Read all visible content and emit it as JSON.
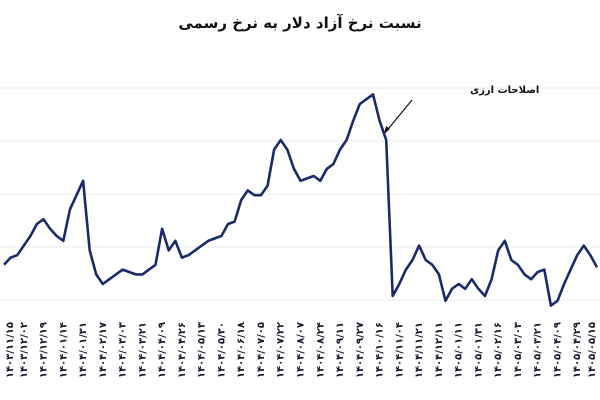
{
  "chart_data": {
    "type": "line",
    "title": "نسبت نرخ آزاد دلار به نرخ رسمی",
    "annotation": "اصلاحات ارزی",
    "categories": [
      "۱۴۰۳/۱۱/۱۵",
      null,
      null,
      "۱۴۰۳/۱۲/۰۲",
      null,
      null,
      "۱۴۰۳/۱۲/۱۹",
      null,
      null,
      "۱۴۰۴/۰۱/۱۴",
      null,
      null,
      "۱۴۰۴/۰۱/۳۱",
      null,
      null,
      "۱۴۰۴/۰۲/۱۷",
      null,
      null,
      "۱۴۰۴/۰۳/۰۳",
      null,
      null,
      "۱۴۰۴/۰۳/۲۱",
      null,
      null,
      "۱۴۰۴/۰۴/۰۹",
      null,
      null,
      "۱۴۰۴/۰۴/۲۶",
      null,
      null,
      "۱۴۰۴/۰۵/۱۳",
      null,
      null,
      "۱۴۰۴/۰۵/۳۰",
      null,
      null,
      "۱۴۰۴/۰۶/۱۸",
      null,
      null,
      "۱۴۰۴/۰۷/۰۵",
      null,
      null,
      "۱۴۰۴/۰۷/۲۲",
      null,
      null,
      "۱۴۰۴/۰۸/۰۷",
      null,
      null,
      "۱۴۰۴/۰۸/۲۴",
      null,
      null,
      "۱۴۰۴/۰۹/۱۱",
      null,
      null,
      "۱۴۰۴/۰۹/۲۷",
      null,
      null,
      "۱۴۰۴/۱۰/۱۶",
      null,
      null,
      "۱۴۰۴/۱۱/۰۴",
      null,
      null,
      "۱۴۰۴/۱۱/۲۱",
      null,
      null,
      "۱۴۰۴/۱۲/۱۱",
      null,
      null,
      "۱۴۰۵/۰۱/۱۱",
      null,
      null,
      "۱۴۰۵/۰۱/۳۱",
      null,
      null,
      "۱۴۰۵/۰۲/۱۶",
      null,
      null,
      "۱۴۰۵/۰۳/۰۳",
      null,
      null,
      "۱۴۰۵/۰۳/۲۱",
      null,
      null,
      "۱۴۰۵/۰۴/۰۹",
      null,
      null,
      "۱۴۰۵/۰۴/۲۹",
      null,
      null,
      "۱۴۰۵/۰۵/۱۵"
    ],
    "values": [
      23,
      26,
      27,
      31,
      35,
      40,
      42,
      38,
      35,
      33,
      46,
      52,
      58,
      29,
      19,
      15,
      17,
      19,
      21,
      20,
      19,
      19,
      21,
      23,
      38,
      29,
      33,
      26,
      27,
      29,
      31,
      33,
      34,
      35,
      40,
      41,
      50,
      54,
      52,
      52,
      56,
      71,
      75,
      71,
      63,
      58,
      59,
      60,
      58,
      63,
      65,
      71,
      75,
      83,
      90,
      92,
      94,
      83,
      75,
      10,
      15,
      21,
      25,
      31,
      25,
      23,
      19,
      8,
      13,
      15,
      13,
      17,
      13,
      10,
      17,
      29,
      33,
      25,
      23,
      19,
      17,
      20,
      21,
      6,
      8,
      15,
      21,
      27,
      31,
      27,
      22
    ],
    "color": "#1b2a6b",
    "ylim": [
      0,
      100
    ]
  }
}
